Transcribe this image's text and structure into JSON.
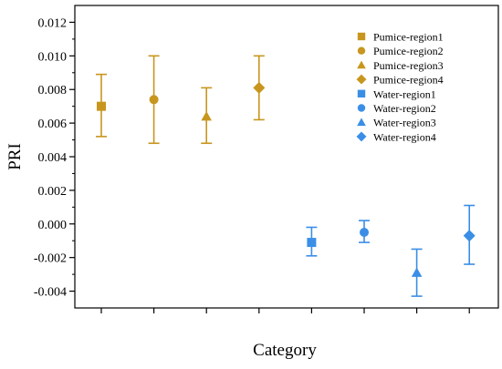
{
  "chart_data": {
    "type": "scatter",
    "title": "",
    "xlabel": "Category",
    "ylabel": "PRI",
    "ylim": [
      -0.005,
      0.013
    ],
    "yticks": [
      -0.004,
      -0.002,
      0.0,
      0.002,
      0.004,
      0.006,
      0.008,
      0.01,
      0.012
    ],
    "ytick_labels": [
      "-0.004",
      "-0.002",
      "0.000",
      "0.002",
      "0.004",
      "0.006",
      "0.008",
      "0.010",
      "0.012"
    ],
    "categories_count": 8,
    "grid": false,
    "legend_position": "top-right",
    "series": [
      {
        "name": "Pumice-region1",
        "x": 1,
        "value": 0.007,
        "err_low": 0.0052,
        "err_high": 0.0089,
        "color": "#C8961E",
        "marker": "square"
      },
      {
        "name": "Pumice-region2",
        "x": 2,
        "value": 0.0074,
        "err_low": 0.0048,
        "err_high": 0.01,
        "color": "#C8961E",
        "marker": "circle"
      },
      {
        "name": "Pumice-region3",
        "x": 3,
        "value": 0.0064,
        "err_low": 0.0048,
        "err_high": 0.0081,
        "color": "#C8961E",
        "marker": "triangle"
      },
      {
        "name": "Pumice-region4",
        "x": 4,
        "value": 0.0081,
        "err_low": 0.0062,
        "err_high": 0.01,
        "color": "#C8961E",
        "marker": "diamond"
      },
      {
        "name": "Water-region1",
        "x": 5,
        "value": -0.0011,
        "err_low": -0.0019,
        "err_high": -0.0002,
        "color": "#3A8EE6",
        "marker": "square"
      },
      {
        "name": "Water-region2",
        "x": 6,
        "value": -0.0005,
        "err_low": -0.0011,
        "err_high": 0.0002,
        "color": "#3A8EE6",
        "marker": "circle"
      },
      {
        "name": "Water-region3",
        "x": 7,
        "value": -0.0029,
        "err_low": -0.0043,
        "err_high": -0.0015,
        "color": "#3A8EE6",
        "marker": "triangle"
      },
      {
        "name": "Water-region4",
        "x": 8,
        "value": -0.0007,
        "err_low": -0.0024,
        "err_high": 0.0011,
        "color": "#3A8EE6",
        "marker": "diamond"
      }
    ]
  }
}
